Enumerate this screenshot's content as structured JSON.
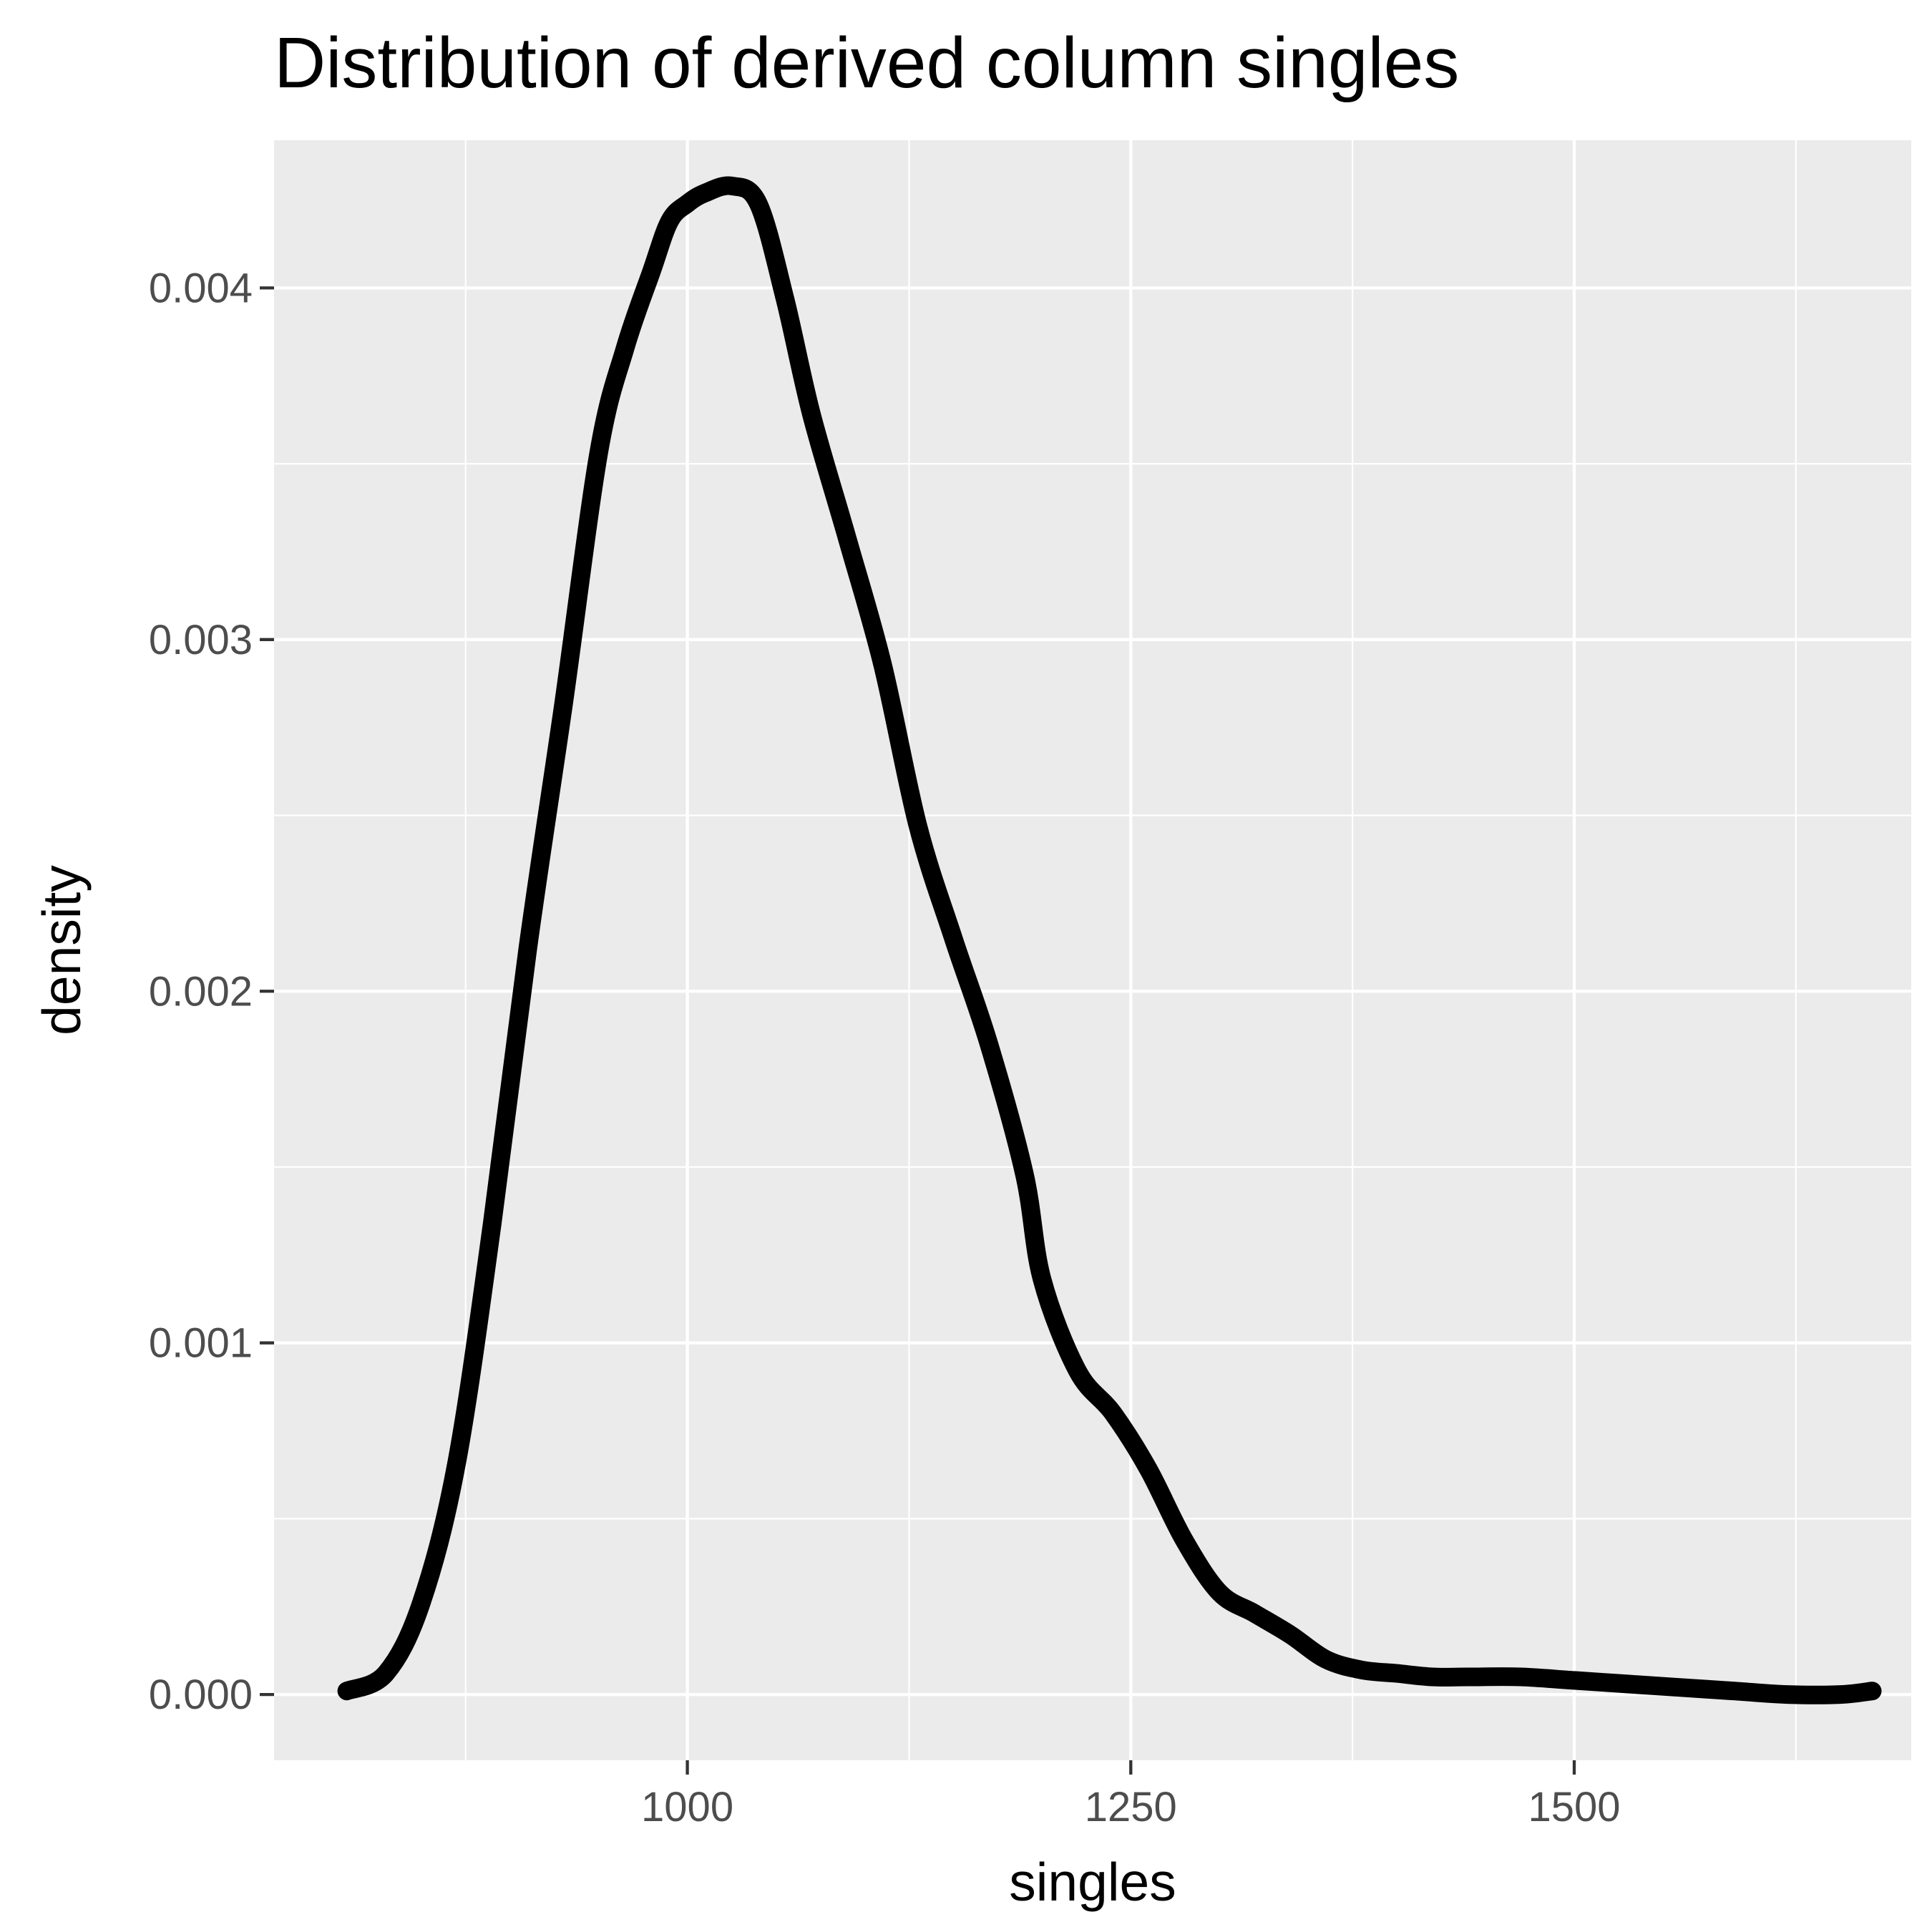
{
  "chart_data": {
    "type": "line",
    "title": "Distribution of derived column singles",
    "xlabel": "singles",
    "ylabel": "density",
    "xlim": [
      767,
      1690
    ],
    "ylim": [
      -0.000187,
      0.00442
    ],
    "x_ticks": [
      1000,
      1250,
      1500
    ],
    "x_tick_labels": [
      "1000",
      "1250",
      "1500"
    ],
    "y_ticks": [
      0.0,
      0.001,
      0.002,
      0.003,
      0.004
    ],
    "y_tick_labels": [
      "0.000",
      "0.001",
      "0.002",
      "0.003",
      "0.004"
    ],
    "x_minor": [
      875,
      1125,
      1375,
      1625
    ],
    "y_minor": [
      0.0005,
      0.0015,
      0.0025,
      0.0035
    ],
    "grid": true,
    "legend": "none",
    "colors": {
      "panel_background": "#ebebeb",
      "grid": "#ffffff",
      "line": "#000000",
      "tick_label": "#4d4d4d",
      "tick_mark": "#333333"
    },
    "series": [
      {
        "x": [
          808,
          830,
          850,
          870,
          890,
          910,
          930,
          950,
          965,
          980,
          990,
          1000,
          1010,
          1025,
          1040,
          1055,
          1070,
          1090,
          1110,
          1130,
          1150,
          1170,
          1190,
          1200,
          1220,
          1240,
          1260,
          1280,
          1300,
          1320,
          1340,
          1360,
          1380,
          1400,
          1420,
          1440,
          1470,
          1500,
          1530,
          1560,
          1590,
          1620,
          1650,
          1668
        ],
        "y": [
          1e-05,
          6e-05,
          0.00026,
          0.00066,
          0.00134,
          0.00212,
          0.00281,
          0.00353,
          0.00383,
          0.00405,
          0.00419,
          0.00424,
          0.00427,
          0.00429,
          0.00424,
          0.00397,
          0.00364,
          0.00329,
          0.00293,
          0.00247,
          0.00215,
          0.00185,
          0.00148,
          0.00118,
          0.00092,
          0.0008,
          0.00064,
          0.00044,
          0.00029,
          0.00023,
          0.00017,
          0.0001,
          7e-05,
          6e-05,
          5e-05,
          5e-05,
          5e-05,
          4e-05,
          3e-05,
          2e-05,
          1e-05,
          0.0,
          0.0,
          1e-05
        ]
      }
    ]
  }
}
